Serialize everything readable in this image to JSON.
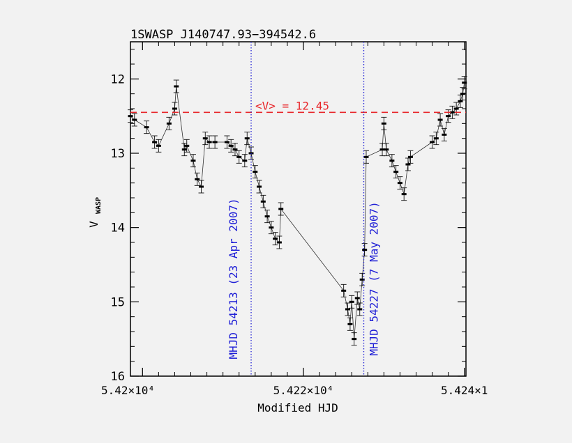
{
  "chart_data": {
    "type": "scatter",
    "title": "1SWASP J140747.93−394542.6",
    "xlabel": "Modified HJD",
    "ylabel_main": "V",
    "ylabel_sub": "WASP",
    "xlim": [
      54198.5,
      54240.2
    ],
    "ylim": [
      16,
      11.5
    ],
    "y_inverted": true,
    "x_ticks": [
      54200,
      54220,
      54240
    ],
    "x_tick_labels": [
      "5.42×10⁴",
      "5.422×10⁴",
      "5.424×1"
    ],
    "y_ticks": [
      12,
      13,
      14,
      15,
      16
    ],
    "y_tick_labels": [
      "12",
      "13",
      "14",
      "15",
      "16"
    ],
    "mean_line": {
      "y": 12.45,
      "label": "<V> = 12.45",
      "color": "#e8262a"
    },
    "markers": [
      {
        "x": 54213.5,
        "label": "MHJD 54213 (23 Apr 2007)",
        "color": "#1f1fd6"
      },
      {
        "x": 54227.5,
        "label": "MHJD 54227 (7 May 2007)",
        "color": "#1f1fd6"
      }
    ],
    "series": [
      {
        "points": [
          [
            54198.5,
            12.5
          ],
          [
            54199.0,
            12.55
          ],
          [
            54200.5,
            12.65
          ],
          [
            54201.5,
            12.85
          ],
          [
            54202.0,
            12.9
          ],
          [
            54203.3,
            12.6
          ],
          [
            54204.0,
            12.4
          ],
          [
            54204.2,
            12.1
          ],
          [
            54205.2,
            12.95
          ],
          [
            54205.5,
            12.9
          ],
          [
            54206.3,
            13.1
          ],
          [
            54206.8,
            13.35
          ],
          [
            54207.3,
            13.45
          ],
          [
            54207.8,
            12.8
          ],
          [
            54208.3,
            12.85
          ],
          [
            54209.0,
            12.85
          ],
          [
            54210.5,
            12.85
          ],
          [
            54211.0,
            12.9
          ],
          [
            54211.5,
            12.95
          ],
          [
            54212.0,
            13.05
          ],
          [
            54212.7,
            13.1
          ],
          [
            54213.0,
            12.8
          ],
          [
            54213.5,
            13.0
          ],
          [
            54214.0,
            13.25
          ],
          [
            54214.5,
            13.45
          ],
          [
            54215.0,
            13.65
          ],
          [
            54215.5,
            13.85
          ],
          [
            54216.0,
            14.0
          ],
          [
            54216.5,
            14.15
          ],
          [
            54217.0,
            14.2
          ],
          [
            54217.2,
            13.75
          ],
          [
            54225.0,
            14.85
          ],
          [
            54225.5,
            15.1
          ],
          [
            54225.8,
            15.3
          ],
          [
            54226.0,
            15.0
          ],
          [
            54226.3,
            15.5
          ],
          [
            54226.7,
            14.95
          ],
          [
            54227.0,
            15.1
          ],
          [
            54227.3,
            14.7
          ],
          [
            54227.6,
            14.3
          ],
          [
            54227.8,
            13.05
          ],
          [
            54229.8,
            12.95
          ],
          [
            54230.0,
            12.6
          ],
          [
            54230.3,
            12.95
          ],
          [
            54231.0,
            13.1
          ],
          [
            54231.5,
            13.25
          ],
          [
            54232.0,
            13.4
          ],
          [
            54232.5,
            13.55
          ],
          [
            54233.0,
            13.15
          ],
          [
            54233.3,
            13.05
          ],
          [
            54236.0,
            12.85
          ],
          [
            54236.5,
            12.8
          ],
          [
            54237.0,
            12.55
          ],
          [
            54237.5,
            12.75
          ],
          [
            54238.0,
            12.5
          ],
          [
            54238.5,
            12.45
          ],
          [
            54239.0,
            12.4
          ],
          [
            54239.5,
            12.3
          ],
          [
            54239.8,
            12.2
          ],
          [
            54240.0,
            12.05
          ]
        ]
      }
    ]
  }
}
